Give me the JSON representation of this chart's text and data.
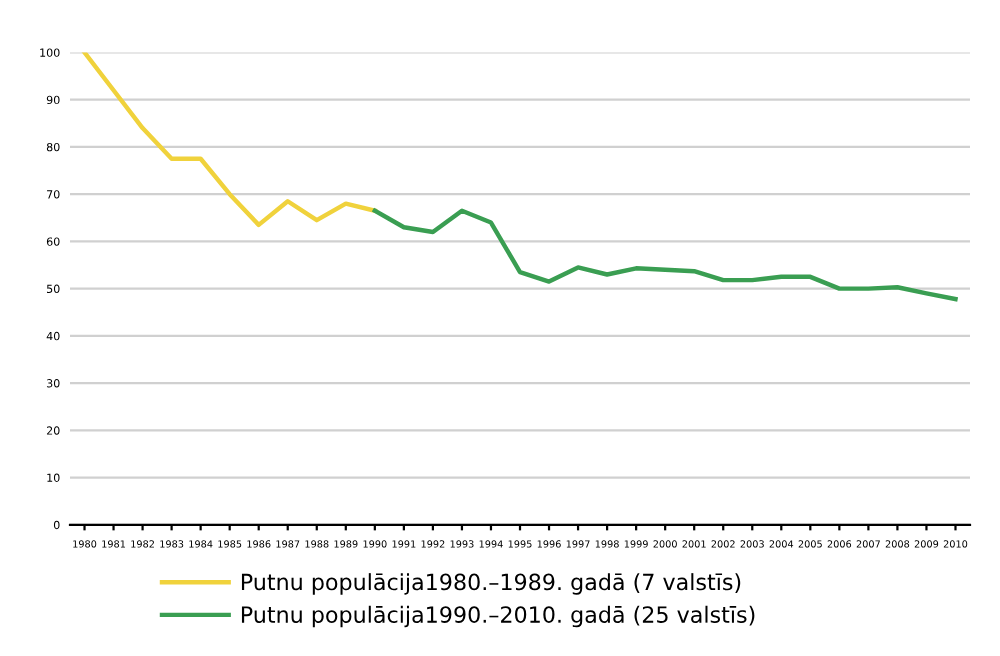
{
  "chart_data": {
    "type": "line",
    "categories": [
      "1980",
      "1981",
      "1982",
      "1983",
      "1984",
      "1985",
      "1986",
      "1987",
      "1988",
      "1989",
      "1990",
      "1991",
      "1992",
      "1993",
      "1994",
      "1995",
      "1996",
      "1997",
      "1998",
      "1999",
      "2000",
      "2001",
      "2002",
      "2003",
      "2004",
      "2005",
      "2006",
      "2007",
      "2008",
      "2009",
      "2010"
    ],
    "series": [
      {
        "name": "Putnu populācija1980.–1989. gadā (7 valstīs)",
        "color": "#f0d23c",
        "values": [
          100,
          92,
          84,
          77.5,
          77.5,
          70,
          63.5,
          68.5,
          64.5,
          68,
          66.5,
          null,
          null,
          null,
          null,
          null,
          null,
          null,
          null,
          null,
          null,
          null,
          null,
          null,
          null,
          null,
          null,
          null,
          null,
          null,
          null
        ]
      },
      {
        "name": "Putnu populācija1990.–2010. gadā (25 valstīs)",
        "color": "#3a9e52",
        "values": [
          null,
          null,
          null,
          null,
          null,
          null,
          null,
          null,
          null,
          null,
          66.5,
          63,
          62,
          66.5,
          64,
          53.5,
          51.5,
          54.5,
          53,
          54.3,
          54,
          53.7,
          51.8,
          51.8,
          52.5,
          52.5,
          50,
          50,
          50.3,
          49,
          47.8
        ]
      }
    ],
    "ylim": [
      0,
      100
    ],
    "yticks": [
      0,
      10,
      20,
      30,
      40,
      50,
      60,
      70,
      80,
      90,
      100
    ],
    "grid": "y",
    "legend": "bottom",
    "marker": "none",
    "line_style": "solid"
  }
}
